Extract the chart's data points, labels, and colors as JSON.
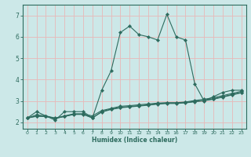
{
  "xlabel": "Humidex (Indice chaleur)",
  "background_color": "#cce8e8",
  "grid_color": "#e8b8b8",
  "line_color": "#2d6b5e",
  "spine_color": "#2d6b5e",
  "xlim": [
    -0.5,
    23.5
  ],
  "ylim": [
    1.7,
    7.5
  ],
  "xticks": [
    0,
    1,
    2,
    3,
    4,
    5,
    6,
    7,
    8,
    9,
    10,
    11,
    12,
    13,
    14,
    15,
    16,
    17,
    18,
    19,
    20,
    21,
    22,
    23
  ],
  "yticks": [
    2,
    3,
    4,
    5,
    6,
    7
  ],
  "series1_x": [
    0,
    1,
    2,
    3,
    4,
    5,
    6,
    7,
    8,
    9,
    10,
    11,
    12,
    13,
    14,
    15,
    16,
    17,
    18,
    19,
    20,
    21,
    22,
    23
  ],
  "series1_y": [
    2.2,
    2.5,
    2.3,
    2.1,
    2.5,
    2.5,
    2.5,
    2.2,
    3.5,
    4.4,
    6.2,
    6.5,
    6.1,
    6.0,
    5.85,
    7.05,
    6.0,
    5.85,
    3.8,
    3.0,
    3.2,
    3.4,
    3.5,
    3.5
  ],
  "series2_x": [
    0,
    1,
    2,
    3,
    4,
    5,
    6,
    7,
    8,
    9,
    10,
    11,
    12,
    13,
    14,
    15,
    16,
    17,
    18,
    19,
    20,
    21,
    22,
    23
  ],
  "series2_y": [
    2.2,
    2.35,
    2.3,
    2.2,
    2.3,
    2.4,
    2.4,
    2.3,
    2.55,
    2.65,
    2.75,
    2.78,
    2.82,
    2.86,
    2.9,
    2.92,
    2.92,
    2.95,
    3.02,
    3.08,
    3.15,
    3.25,
    3.35,
    3.45
  ],
  "series3_x": [
    0,
    1,
    2,
    3,
    4,
    5,
    6,
    7,
    8,
    9,
    10,
    11,
    12,
    13,
    14,
    15,
    16,
    17,
    18,
    19,
    20,
    21,
    22,
    23
  ],
  "series3_y": [
    2.2,
    2.3,
    2.28,
    2.18,
    2.28,
    2.38,
    2.38,
    2.2,
    2.5,
    2.62,
    2.7,
    2.74,
    2.78,
    2.82,
    2.87,
    2.9,
    2.9,
    2.93,
    2.98,
    3.03,
    3.1,
    3.2,
    3.3,
    3.4
  ],
  "series4_x": [
    0,
    1,
    2,
    3,
    4,
    5,
    6,
    7,
    8,
    9,
    10,
    11,
    12,
    13,
    14,
    15,
    16,
    17,
    18,
    19,
    20,
    21,
    22,
    23
  ],
  "series4_y": [
    2.2,
    2.28,
    2.27,
    2.19,
    2.27,
    2.37,
    2.37,
    2.22,
    2.48,
    2.6,
    2.68,
    2.72,
    2.76,
    2.8,
    2.85,
    2.88,
    2.88,
    2.91,
    2.96,
    3.01,
    3.08,
    3.18,
    3.28,
    3.38
  ]
}
